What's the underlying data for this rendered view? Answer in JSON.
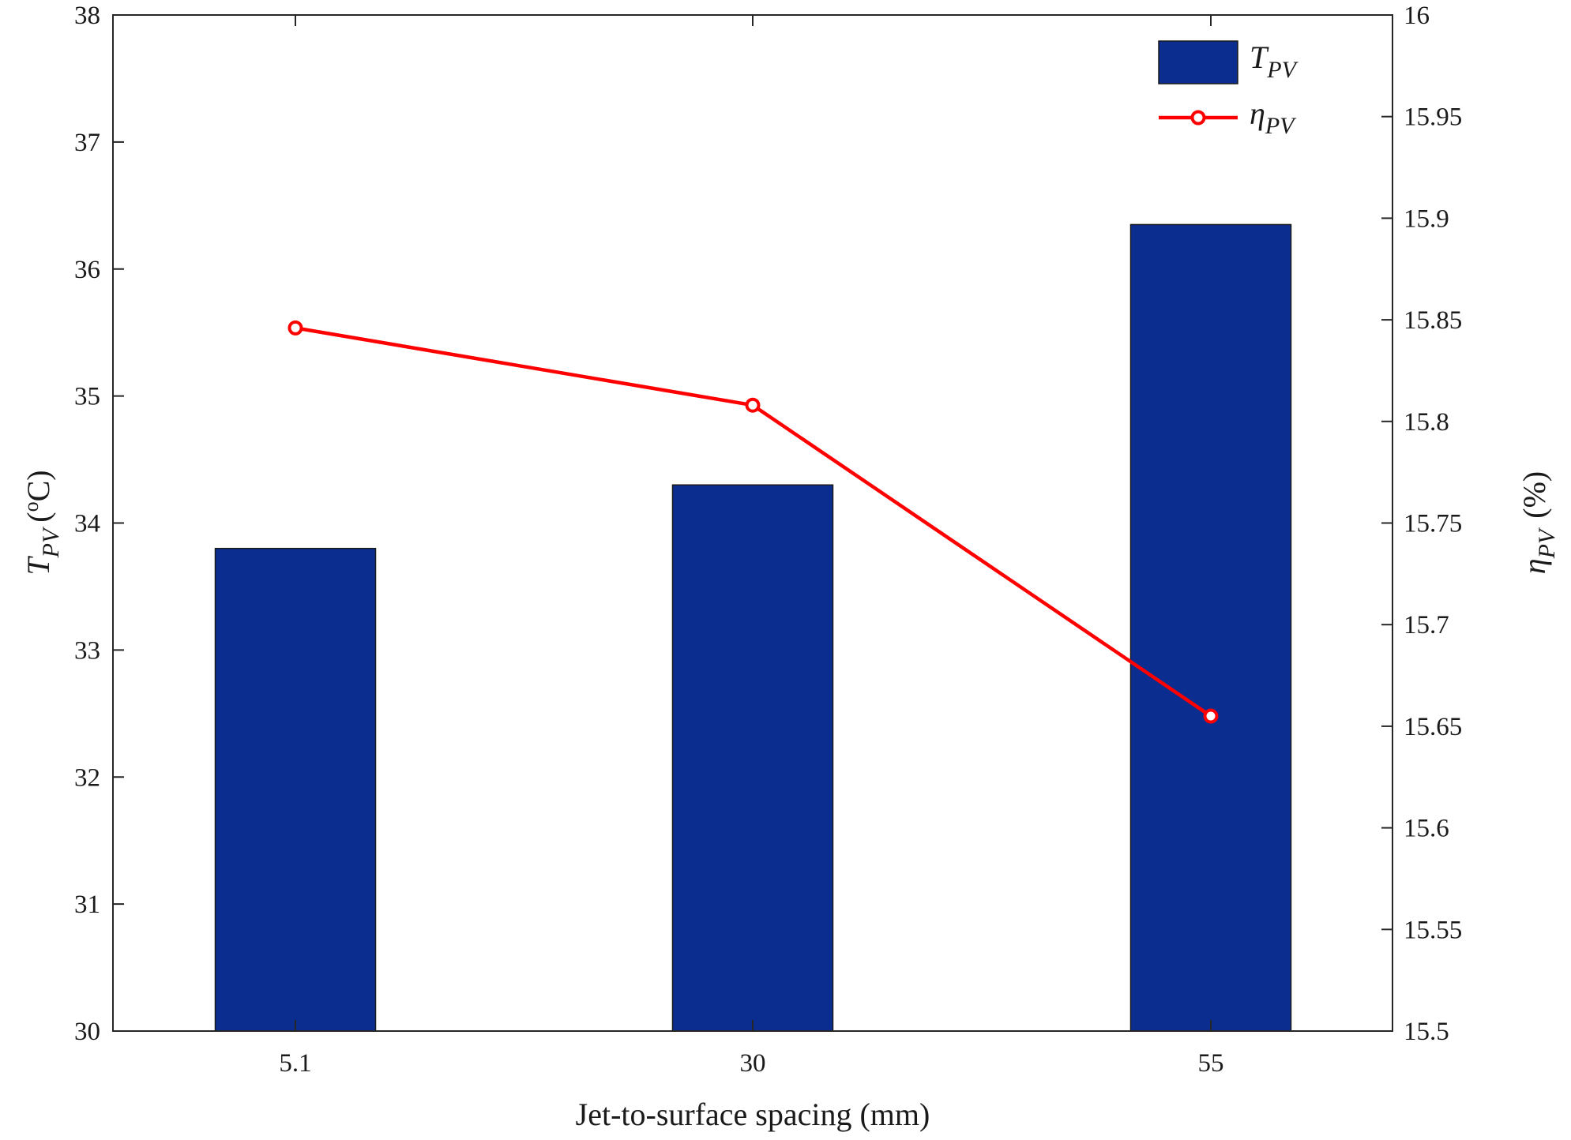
{
  "chart_data": {
    "type": "bar",
    "categories": [
      "5.1",
      "30",
      "55"
    ],
    "xlabel": "Jet-to-surface spacing (mm)",
    "ylabel_left": {
      "symbol": "T",
      "subscript": "PV",
      "unit": "(°C)",
      "unit_sup": "o",
      "unit_rest": "C)"
    },
    "ylabel_right": {
      "symbol": "η",
      "subscript": "PV",
      "unit": "(%)"
    },
    "ylim_left": [
      30,
      38
    ],
    "ylim_right": [
      15.5,
      16
    ],
    "yticks_left": [
      "30",
      "31",
      "32",
      "33",
      "34",
      "35",
      "36",
      "37",
      "38"
    ],
    "yticks_right": [
      "15.5",
      "15.55",
      "15.6",
      "15.65",
      "15.7",
      "15.75",
      "15.8",
      "15.85",
      "15.9",
      "15.95",
      "16"
    ],
    "grid": false,
    "legend_position": "top-right",
    "series": [
      {
        "name": "T_PV",
        "legend_symbol": "T",
        "legend_subscript": "PV",
        "kind": "bar",
        "axis": "left",
        "color": "#0a2d8f",
        "values": [
          33.8,
          34.3,
          36.35
        ]
      },
      {
        "name": "η_PV",
        "legend_symbol": "η",
        "legend_subscript": "PV",
        "kind": "line",
        "axis": "right",
        "color": "#ff0000",
        "marker": "circle-open",
        "values": [
          15.846,
          15.808,
          15.655
        ]
      }
    ]
  }
}
